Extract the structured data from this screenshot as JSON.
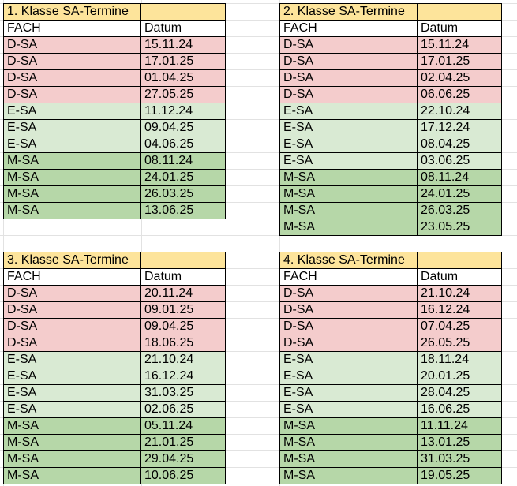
{
  "tables": [
    {
      "title": "1. Klasse SA-Termine",
      "header": {
        "fach": "FACH",
        "datum": "Datum"
      },
      "rows": [
        {
          "fach": "D-SA",
          "datum": "15.11.24",
          "category": "d"
        },
        {
          "fach": "D-SA",
          "datum": "17.01.25",
          "category": "d"
        },
        {
          "fach": "D-SA",
          "datum": "01.04.25",
          "category": "d"
        },
        {
          "fach": "D-SA",
          "datum": "27.05.25",
          "category": "d"
        },
        {
          "fach": "E-SA",
          "datum": "11.12.24",
          "category": "e"
        },
        {
          "fach": "E-SA",
          "datum": "09.04.25",
          "category": "e"
        },
        {
          "fach": "E-SA",
          "datum": "04.06.25",
          "category": "e"
        },
        {
          "fach": "M-SA",
          "datum": "08.11.24",
          "category": "m"
        },
        {
          "fach": "M-SA",
          "datum": "24.01.25",
          "category": "m"
        },
        {
          "fach": "M-SA",
          "datum": "26.03.25",
          "category": "m"
        },
        {
          "fach": "M-SA",
          "datum": "13.06.25",
          "category": "m"
        }
      ]
    },
    {
      "title": "2. Klasse SA-Termine",
      "header": {
        "fach": "FACH",
        "datum": "Datum"
      },
      "rows": [
        {
          "fach": "D-SA",
          "datum": "15.11.24",
          "category": "d"
        },
        {
          "fach": "D-SA",
          "datum": "17.01.25",
          "category": "d"
        },
        {
          "fach": "D-SA",
          "datum": "02.04.25",
          "category": "d"
        },
        {
          "fach": "D-SA",
          "datum": "06.06.25",
          "category": "d"
        },
        {
          "fach": "E-SA",
          "datum": "22.10.24",
          "category": "e"
        },
        {
          "fach": "E-SA",
          "datum": "17.12.24",
          "category": "e"
        },
        {
          "fach": "E-SA",
          "datum": "08.04.25",
          "category": "e"
        },
        {
          "fach": "E-SA",
          "datum": "03.06.25",
          "category": "e"
        },
        {
          "fach": "M-SA",
          "datum": "08.11.24",
          "category": "m"
        },
        {
          "fach": "M-SA",
          "datum": "24.01.25",
          "category": "m"
        },
        {
          "fach": "M-SA",
          "datum": "26.03.25",
          "category": "m"
        },
        {
          "fach": "M-SA",
          "datum": "23.05.25",
          "category": "m"
        }
      ]
    },
    {
      "title": "3. Klasse SA-Termine",
      "header": {
        "fach": "FACH",
        "datum": "Datum"
      },
      "rows": [
        {
          "fach": "D-SA",
          "datum": "20.11.24",
          "category": "d"
        },
        {
          "fach": "D-SA",
          "datum": "09.01.25",
          "category": "d"
        },
        {
          "fach": "D-SA",
          "datum": "09.04.25",
          "category": "d"
        },
        {
          "fach": "D-SA",
          "datum": "18.06.25",
          "category": "d"
        },
        {
          "fach": "E-SA",
          "datum": "21.10.24",
          "category": "e"
        },
        {
          "fach": "E-SA",
          "datum": "16.12.24",
          "category": "e"
        },
        {
          "fach": "E-SA",
          "datum": "31.03.25",
          "category": "e"
        },
        {
          "fach": "E-SA",
          "datum": "02.06.25",
          "category": "e"
        },
        {
          "fach": "M-SA",
          "datum": "05.11.24",
          "category": "m"
        },
        {
          "fach": "M-SA",
          "datum": "21.01.25",
          "category": "m"
        },
        {
          "fach": "M-SA",
          "datum": "29.04.25",
          "category": "m"
        },
        {
          "fach": "M-SA",
          "datum": "10.06.25",
          "category": "m"
        }
      ]
    },
    {
      "title": "4. Klasse SA-Termine",
      "header": {
        "fach": "FACH",
        "datum": "Datum"
      },
      "rows": [
        {
          "fach": "D-SA",
          "datum": "21.10.24",
          "category": "d"
        },
        {
          "fach": "D-SA",
          "datum": "16.12.24",
          "category": "d"
        },
        {
          "fach": "D-SA",
          "datum": "07.04.25",
          "category": "d"
        },
        {
          "fach": "D-SA",
          "datum": "26.05.25",
          "category": "d"
        },
        {
          "fach": "E-SA",
          "datum": "18.11.24",
          "category": "e"
        },
        {
          "fach": "E-SA",
          "datum": "20.01.25",
          "category": "e"
        },
        {
          "fach": "E-SA",
          "datum": "28.04.25",
          "category": "e"
        },
        {
          "fach": "E-SA",
          "datum": "16.06.25",
          "category": "e"
        },
        {
          "fach": "M-SA",
          "datum": "11.11.24",
          "category": "m"
        },
        {
          "fach": "M-SA",
          "datum": "13.01.25",
          "category": "m"
        },
        {
          "fach": "M-SA",
          "datum": "31.03.25",
          "category": "m"
        },
        {
          "fach": "M-SA",
          "datum": "19.05.25",
          "category": "m"
        }
      ]
    }
  ],
  "colors": {
    "title_fill": "#fde49b",
    "d_sa_fill": "#f4cccc",
    "e_sa_fill": "#d9ead3",
    "m_sa_fill": "#b6d7a8",
    "gridline": "#e2e2e2",
    "cell_border": "#000000"
  }
}
